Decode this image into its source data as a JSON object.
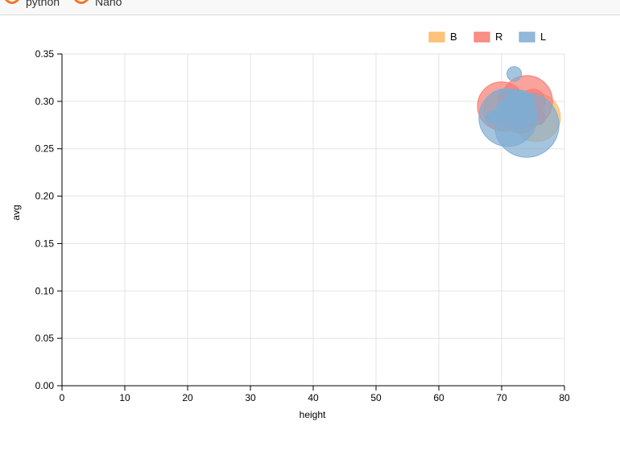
{
  "tabs": [
    {
      "label": "python"
    },
    {
      "label": "Nano"
    }
  ],
  "colors": {
    "B": "#fdb863",
    "R": "#f87b72",
    "L": "#7fadd2",
    "grid": "#e3e3e3",
    "tab_icon": "#f37726"
  },
  "chart_data": {
    "type": "scatter",
    "variant": "bubble",
    "title": "",
    "xlabel": "height",
    "ylabel": "avg",
    "xlim": [
      0,
      80
    ],
    "ylim": [
      0,
      0.35
    ],
    "x_ticks": [
      "0",
      "10",
      "20",
      "30",
      "40",
      "50",
      "60",
      "70",
      "80"
    ],
    "y_ticks": [
      "0.00",
      "0.05",
      "0.10",
      "0.15",
      "0.20",
      "0.25",
      "0.30",
      "0.35"
    ],
    "grid": true,
    "legend_position": "top-right",
    "series": [
      {
        "name": "B",
        "points": [
          {
            "x": 75.5,
            "y": 0.283,
            "size": 30
          },
          {
            "x": 70.5,
            "y": 0.29,
            "size": 26
          },
          {
            "x": 72.0,
            "y": 0.287,
            "size": 18
          },
          {
            "x": 71.5,
            "y": 0.3,
            "size": 12
          },
          {
            "x": 73.0,
            "y": 0.292,
            "size": 9
          },
          {
            "x": 70.0,
            "y": 0.282,
            "size": 8
          },
          {
            "x": 74.5,
            "y": 0.295,
            "size": 10
          }
        ]
      },
      {
        "name": "R",
        "points": [
          {
            "x": 74.0,
            "y": 0.3,
            "size": 32
          },
          {
            "x": 70.0,
            "y": 0.295,
            "size": 30
          },
          {
            "x": 73.0,
            "y": 0.287,
            "size": 24
          },
          {
            "x": 72.0,
            "y": 0.293,
            "size": 18
          },
          {
            "x": 75.0,
            "y": 0.3,
            "size": 15
          },
          {
            "x": 71.0,
            "y": 0.285,
            "size": 12
          },
          {
            "x": 72.5,
            "y": 0.28,
            "size": 10
          },
          {
            "x": 74.0,
            "y": 0.287,
            "size": 9
          },
          {
            "x": 70.5,
            "y": 0.303,
            "size": 8
          },
          {
            "x": 73.5,
            "y": 0.295,
            "size": 7
          },
          {
            "x": 75.8,
            "y": 0.283,
            "size": 9
          },
          {
            "x": 71.8,
            "y": 0.283,
            "size": 6
          }
        ]
      },
      {
        "name": "L",
        "points": [
          {
            "x": 74.0,
            "y": 0.275,
            "size": 40
          },
          {
            "x": 71.0,
            "y": 0.283,
            "size": 36
          },
          {
            "x": 72.5,
            "y": 0.29,
            "size": 22
          },
          {
            "x": 73.0,
            "y": 0.3,
            "size": 14
          },
          {
            "x": 72.0,
            "y": 0.329,
            "size": 9
          },
          {
            "x": 70.0,
            "y": 0.293,
            "size": 7
          },
          {
            "x": 68.5,
            "y": 0.284,
            "size": 7
          },
          {
            "x": 71.5,
            "y": 0.306,
            "size": 7
          },
          {
            "x": 74.5,
            "y": 0.3,
            "size": 6
          },
          {
            "x": 69.5,
            "y": 0.279,
            "size": 5
          },
          {
            "x": 73.5,
            "y": 0.291,
            "size": 6
          },
          {
            "x": 72.0,
            "y": 0.284,
            "size": 5
          },
          {
            "x": 70.5,
            "y": 0.298,
            "size": 5
          },
          {
            "x": 68.0,
            "y": 0.281,
            "size": 5
          },
          {
            "x": 71.0,
            "y": 0.287,
            "size": 5
          },
          {
            "x": 69.0,
            "y": 0.287,
            "size": 4
          },
          {
            "x": 73.0,
            "y": 0.297,
            "size": 4
          },
          {
            "x": 72.5,
            "y": 0.282,
            "size": 4
          },
          {
            "x": 74.0,
            "y": 0.292,
            "size": 4
          },
          {
            "x": 70.0,
            "y": 0.309,
            "size": 3
          }
        ]
      }
    ]
  }
}
